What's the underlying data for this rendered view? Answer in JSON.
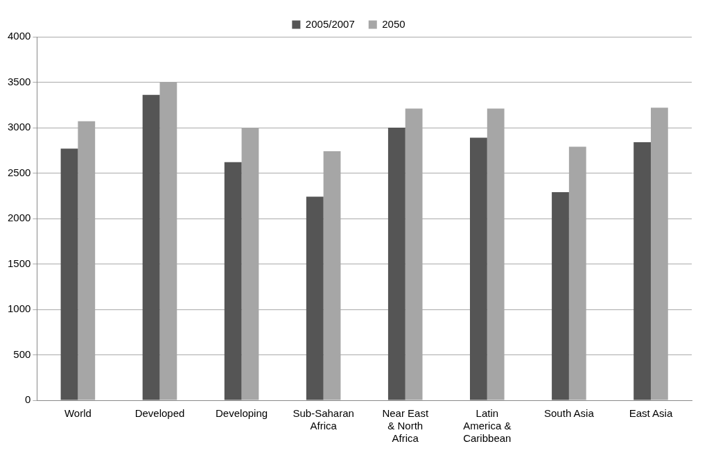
{
  "chart_data": {
    "type": "bar",
    "categories": [
      "World",
      "Developed",
      "Developing",
      "Sub-Saharan Africa",
      "Near East & North Africa",
      "Latin America & Caribbean",
      "South Asia",
      "East Asia"
    ],
    "series": [
      {
        "name": "2005/2007",
        "color": "#555555",
        "values": [
          2770,
          3360,
          2620,
          2240,
          3000,
          2890,
          2290,
          2840
        ]
      },
      {
        "name": "2050",
        "color": "#a6a6a6",
        "values": [
          3070,
          3500,
          3000,
          2740,
          3210,
          3210,
          2790,
          3220
        ]
      }
    ],
    "ylim": [
      0,
      4000
    ],
    "yticks": [
      0,
      500,
      1000,
      1500,
      2000,
      2500,
      3000,
      3500,
      4000
    ],
    "grid": "y",
    "legend": "top"
  }
}
